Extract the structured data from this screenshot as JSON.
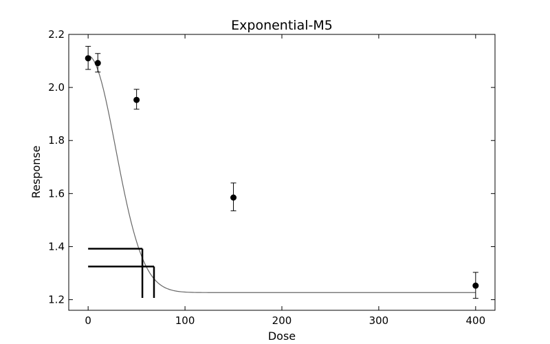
{
  "chart_data": {
    "type": "scatter",
    "title": "Exponential-M5",
    "xlabel": "Dose",
    "ylabel": "Response",
    "xlim": [
      -20,
      420
    ],
    "ylim": [
      1.16,
      2.2
    ],
    "xticks": [
      0,
      100,
      200,
      300,
      400
    ],
    "yticks": [
      1.2,
      1.4,
      1.6,
      1.8,
      2.0,
      2.2
    ],
    "xtick_labels": [
      "0",
      "100",
      "200",
      "300",
      "400"
    ],
    "ytick_labels": [
      "1.2",
      "1.4",
      "1.6",
      "1.8",
      "2.0",
      "2.2"
    ],
    "grid": false,
    "points": [
      {
        "x": 0,
        "y": 2.11,
        "err_low": 2.068,
        "err_high": 2.155
      },
      {
        "x": 10,
        "y": 2.092,
        "err_low": 2.058,
        "err_high": 2.128
      },
      {
        "x": 50,
        "y": 1.953,
        "err_low": 1.918,
        "err_high": 1.993
      },
      {
        "x": 150,
        "y": 1.585,
        "err_low": 1.535,
        "err_high": 1.64
      },
      {
        "x": 400,
        "y": 1.253,
        "err_low": 1.205,
        "err_high": 1.303
      }
    ],
    "fitted_curve": {
      "model": "exponential",
      "a": 2.12,
      "c_asymptote": 1.2268,
      "b": 0.0248,
      "d": 2.0,
      "x_range": [
        0,
        400
      ],
      "color": "#666666"
    },
    "bmd_markers": [
      {
        "x": 56,
        "y": 1.392
      },
      {
        "x": 68,
        "y": 1.325
      }
    ],
    "marker_color": "#000000"
  }
}
